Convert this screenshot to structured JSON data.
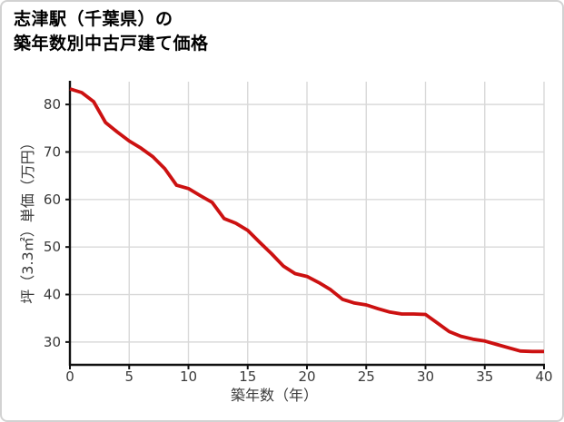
{
  "card": {
    "title_line1": "志津駅（千葉県）の",
    "title_line2": "築年数別中古戸建て価格"
  },
  "chart_data": {
    "type": "line",
    "title": "志津駅（千葉県）の築年数別中古戸建て価格",
    "xlabel": "築年数（年）",
    "ylabel": "坪（3.3㎡）単価（万円）",
    "x": [
      0,
      1,
      2,
      3,
      4,
      5,
      6,
      7,
      8,
      9,
      10,
      11,
      12,
      13,
      14,
      15,
      16,
      17,
      18,
      19,
      20,
      21,
      22,
      23,
      24,
      25,
      26,
      27,
      28,
      29,
      30,
      31,
      32,
      33,
      34,
      35,
      36,
      37,
      38,
      39,
      40
    ],
    "values": [
      83.3,
      82.5,
      80.6,
      76.2,
      74.2,
      72.3,
      70.8,
      69.0,
      66.5,
      63.0,
      62.3,
      60.8,
      59.4,
      56.0,
      55.0,
      53.5,
      51.0,
      48.6,
      46.0,
      44.4,
      43.8,
      42.5,
      41.0,
      39.0,
      38.2,
      37.8,
      37.0,
      36.3,
      35.9,
      35.9,
      35.8,
      34.0,
      32.2,
      31.2,
      30.6,
      30.2,
      29.5,
      28.8,
      28.1,
      28.0,
      28.0
    ],
    "xlim": [
      0,
      40
    ],
    "ylim": [
      25.2,
      84.8
    ],
    "xticks": [
      0,
      5,
      10,
      15,
      20,
      25,
      30,
      35,
      40
    ],
    "yticks": [
      30,
      40,
      50,
      60,
      70,
      80
    ],
    "grid": true,
    "legend": false,
    "line_color": "#cc1111"
  },
  "colors": {
    "line": "#cc1111",
    "grid": "#d9d9d9",
    "axis": "#111111",
    "tick_text": "#3a3a3a",
    "title_text": "#000000",
    "card_border": "#d2d2d2",
    "background": "#ffffff"
  }
}
